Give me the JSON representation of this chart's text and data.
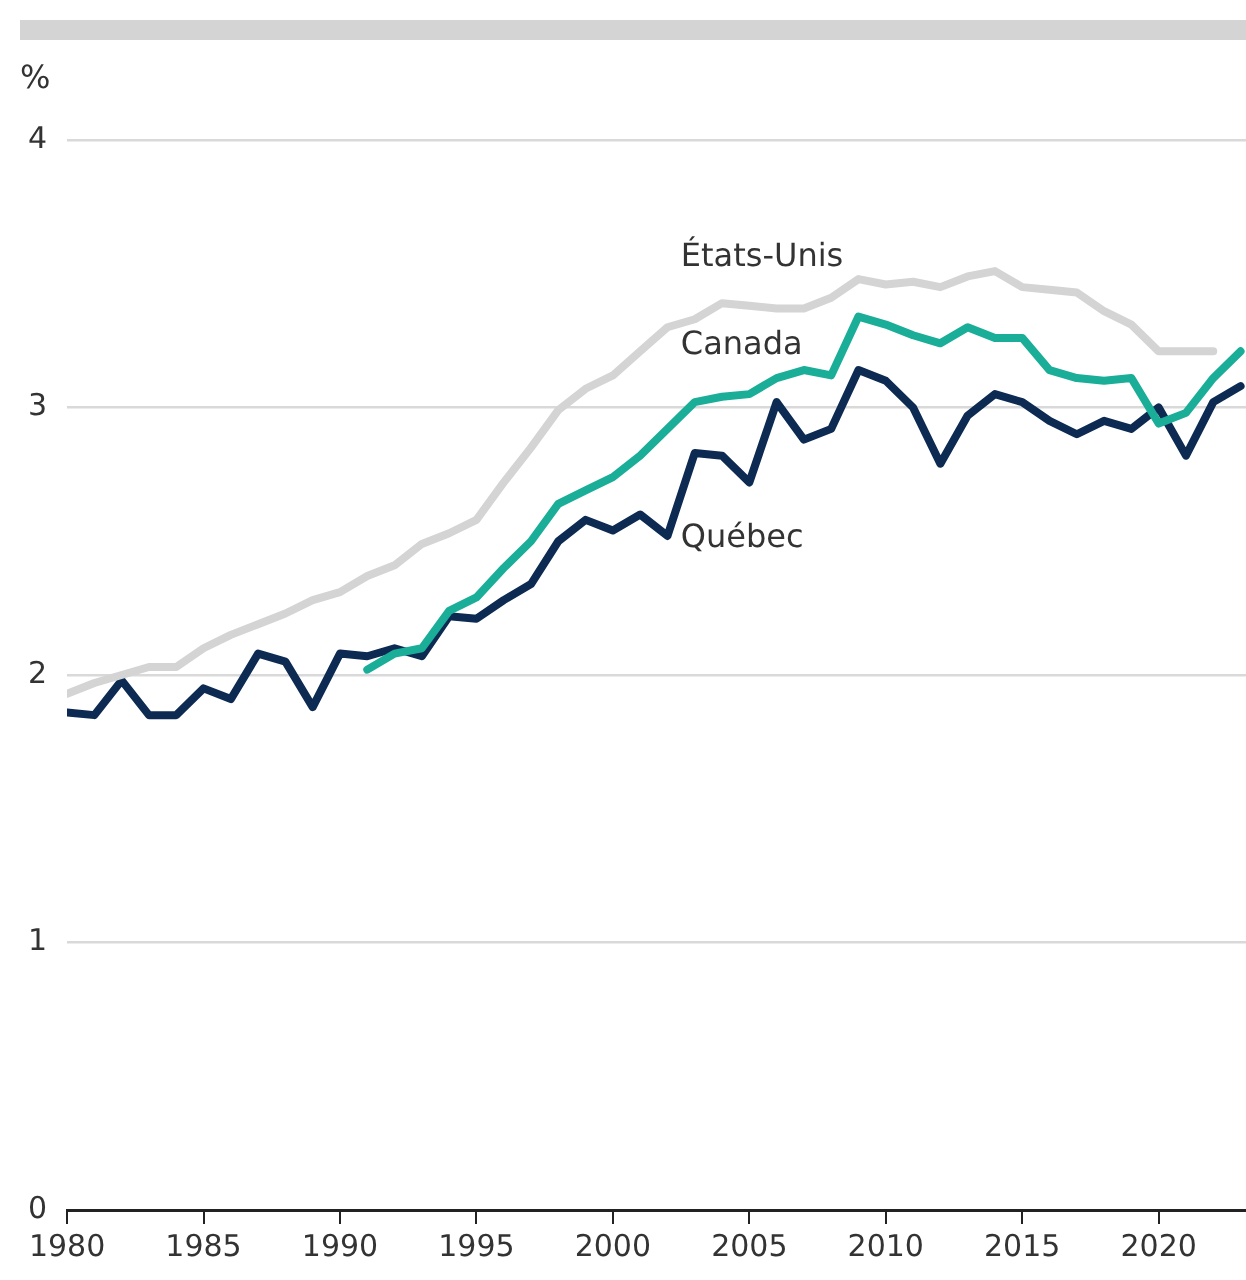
{
  "chart_data": {
    "type": "line",
    "ylabel": "%",
    "x": [
      1980,
      1981,
      1982,
      1983,
      1984,
      1985,
      1986,
      1987,
      1988,
      1989,
      1990,
      1991,
      1992,
      1993,
      1994,
      1995,
      1996,
      1997,
      1998,
      1999,
      2000,
      2001,
      2002,
      2003,
      2004,
      2005,
      2006,
      2007,
      2008,
      2009,
      2010,
      2011,
      2012,
      2013,
      2014,
      2015,
      2016,
      2017,
      2018,
      2019,
      2020,
      2021,
      2022,
      2023
    ],
    "series": [
      {
        "name": "États-Unis",
        "color": "#d4d4d4",
        "values": [
          1.93,
          1.97,
          2.0,
          2.03,
          2.03,
          2.1,
          2.15,
          2.19,
          2.23,
          2.28,
          2.31,
          2.37,
          2.41,
          2.49,
          2.53,
          2.58,
          2.72,
          2.85,
          2.99,
          3.07,
          3.12,
          3.21,
          3.3,
          3.33,
          3.39,
          3.38,
          3.37,
          3.37,
          3.41,
          3.48,
          3.46,
          3.47,
          3.45,
          3.49,
          3.51,
          3.45,
          3.44,
          3.43,
          3.36,
          3.31,
          3.21,
          3.21,
          3.21,
          null
        ]
      },
      {
        "name": "Canada",
        "color": "#1aae98",
        "values": [
          null,
          null,
          null,
          null,
          null,
          null,
          null,
          null,
          null,
          null,
          null,
          2.02,
          2.08,
          2.1,
          2.24,
          2.29,
          2.4,
          2.5,
          2.64,
          2.69,
          2.74,
          2.82,
          2.92,
          3.02,
          3.04,
          3.05,
          3.11,
          3.14,
          3.12,
          3.34,
          3.31,
          3.27,
          3.24,
          3.3,
          3.26,
          3.26,
          3.14,
          3.11,
          3.1,
          3.11,
          2.94,
          2.98,
          3.11,
          3.21
        ]
      },
      {
        "name": "Québec",
        "color": "#0c2a52",
        "values": [
          1.86,
          1.85,
          1.98,
          1.85,
          1.85,
          1.95,
          1.91,
          2.08,
          2.05,
          1.88,
          2.08,
          2.07,
          2.1,
          2.07,
          2.22,
          2.21,
          2.28,
          2.34,
          2.5,
          2.58,
          2.54,
          2.6,
          2.52,
          2.83,
          2.82,
          2.72,
          3.02,
          2.88,
          2.92,
          3.14,
          3.1,
          3.0,
          2.79,
          2.97,
          3.05,
          3.02,
          2.95,
          2.9,
          2.95,
          2.92,
          3.0,
          2.82,
          3.02,
          3.08
        ]
      }
    ],
    "xlim": [
      1980,
      2023.2
    ],
    "xticks": [
      1980,
      1985,
      1990,
      1995,
      2000,
      2005,
      2010,
      2015,
      2020
    ],
    "ylim": [
      0,
      4
    ],
    "yticks": [
      0,
      1,
      2,
      3,
      4
    ],
    "grid": "y",
    "legend": false,
    "marker": "none",
    "line_style": "solid"
  }
}
